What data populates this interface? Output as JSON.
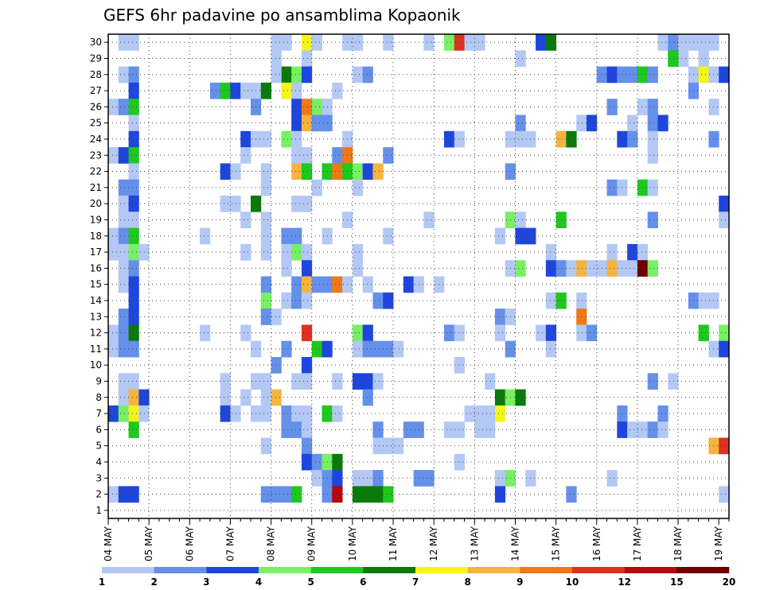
{
  "chart_data": {
    "type": "heatmap",
    "title": "GEFS 6hr padavine po ansamblima Kopaonik",
    "x_tick_labels": [
      "04 MAY",
      "05 MAY",
      "06 MAY",
      "07 MAY",
      "08 MAY",
      "09 MAY",
      "10 MAY",
      "11 MAY",
      "12 MAY",
      "13 MAY",
      "14 MAY",
      "15 MAY",
      "16 MAY",
      "17 MAY",
      "18 MAY",
      "19 MAY"
    ],
    "y_tick_labels": [
      "1",
      "2",
      "3",
      "4",
      "5",
      "6",
      "7",
      "8",
      "9",
      "10",
      "11",
      "12",
      "13",
      "14",
      "15",
      "16",
      "17",
      "18",
      "19",
      "20",
      "21",
      "22",
      "23",
      "24",
      "25",
      "26",
      "27",
      "28",
      "29",
      "30"
    ],
    "y_range": [
      1,
      30
    ],
    "time_steps_6h": 61,
    "grid": true,
    "legend_position": "bottom",
    "legend_levels": [
      "1",
      "2",
      "3",
      "4",
      "5",
      "6",
      "7",
      "8",
      "9",
      "10",
      "12",
      "15",
      "20"
    ],
    "colors": [
      "#b4c8f5",
      "#6490ea",
      "#1e46dc",
      "#78f064",
      "#1ec81e",
      "#0a7a0a",
      "#f5f51e",
      "#f5b440",
      "#f07818",
      "#dc321e",
      "#b40a0a",
      "#6e0000"
    ],
    "cells": [
      [
        1,
        30,
        0
      ],
      [
        2,
        30,
        0
      ],
      [
        16,
        30,
        0
      ],
      [
        17,
        30,
        0
      ],
      [
        17,
        28,
        5
      ],
      [
        19,
        30,
        6
      ],
      [
        20,
        30,
        0
      ],
      [
        23,
        30,
        0
      ],
      [
        24,
        30,
        0
      ],
      [
        27,
        30,
        0
      ],
      [
        31,
        30,
        0
      ],
      [
        31,
        31,
        0
      ],
      [
        33,
        30,
        3
      ],
      [
        34,
        30,
        9
      ],
      [
        35,
        30,
        0
      ],
      [
        36,
        30,
        0
      ],
      [
        42,
        30,
        2
      ],
      [
        43,
        30,
        5
      ],
      [
        54,
        30,
        0
      ],
      [
        55,
        30,
        1
      ],
      [
        55,
        29,
        4
      ],
      [
        56,
        30,
        0
      ],
      [
        56,
        29,
        0
      ],
      [
        57,
        30,
        0
      ],
      [
        58,
        30,
        0
      ],
      [
        59,
        30,
        0
      ],
      [
        16,
        29,
        0
      ],
      [
        19,
        29,
        0
      ],
      [
        40,
        29,
        0
      ],
      [
        55,
        29,
        4
      ],
      [
        58,
        29,
        0
      ],
      [
        58,
        29,
        0
      ],
      [
        1,
        28,
        0
      ],
      [
        2,
        28,
        1
      ],
      [
        16,
        28,
        0
      ],
      [
        18,
        28,
        3
      ],
      [
        19,
        28,
        2
      ],
      [
        24,
        28,
        0
      ],
      [
        25,
        28,
        1
      ],
      [
        48,
        28,
        1
      ],
      [
        49,
        28,
        2
      ],
      [
        50,
        28,
        1
      ],
      [
        51,
        28,
        1
      ],
      [
        52,
        28,
        4
      ],
      [
        53,
        28,
        1
      ],
      [
        57,
        28,
        0
      ],
      [
        58,
        28,
        6
      ],
      [
        59,
        28,
        0
      ],
      [
        60,
        28,
        2
      ],
      [
        2,
        27,
        2
      ],
      [
        10,
        27,
        1
      ],
      [
        11,
        27,
        4
      ],
      [
        12,
        27,
        2
      ],
      [
        13,
        27,
        0
      ],
      [
        14,
        27,
        0
      ],
      [
        15,
        27,
        5
      ],
      [
        17,
        27,
        6
      ],
      [
        18,
        27,
        0
      ],
      [
        22,
        27,
        0
      ],
      [
        57,
        27,
        1
      ],
      [
        0,
        26,
        0
      ],
      [
        1,
        26,
        1
      ],
      [
        2,
        26,
        4
      ],
      [
        14,
        26,
        1
      ],
      [
        18,
        26,
        2
      ],
      [
        19,
        26,
        8
      ],
      [
        20,
        26,
        3
      ],
      [
        21,
        26,
        0
      ],
      [
        49,
        26,
        1
      ],
      [
        52,
        26,
        0
      ],
      [
        53,
        26,
        1
      ],
      [
        59,
        26,
        0
      ],
      [
        2,
        25,
        0
      ],
      [
        18,
        25,
        2
      ],
      [
        19,
        25,
        7
      ],
      [
        20,
        25,
        1
      ],
      [
        21,
        25,
        1
      ],
      [
        40,
        25,
        1
      ],
      [
        46,
        25,
        0
      ],
      [
        47,
        25,
        2
      ],
      [
        51,
        25,
        0
      ],
      [
        53,
        25,
        1
      ],
      [
        54,
        25,
        2
      ],
      [
        2,
        24,
        2
      ],
      [
        13,
        24,
        2
      ],
      [
        14,
        24,
        0
      ],
      [
        15,
        24,
        0
      ],
      [
        17,
        24,
        3
      ],
      [
        18,
        24,
        0
      ],
      [
        23,
        24,
        0
      ],
      [
        33,
        24,
        2
      ],
      [
        34,
        24,
        0
      ],
      [
        39,
        24,
        0
      ],
      [
        40,
        24,
        0
      ],
      [
        41,
        24,
        0
      ],
      [
        44,
        24,
        7
      ],
      [
        45,
        24,
        5
      ],
      [
        50,
        24,
        2
      ],
      [
        51,
        24,
        1
      ],
      [
        53,
        24,
        0
      ],
      [
        59,
        24,
        1
      ],
      [
        0,
        23,
        0
      ],
      [
        1,
        23,
        2
      ],
      [
        2,
        23,
        4
      ],
      [
        13,
        23,
        0
      ],
      [
        18,
        23,
        0
      ],
      [
        19,
        23,
        0
      ],
      [
        22,
        23,
        1
      ],
      [
        23,
        23,
        8
      ],
      [
        27,
        23,
        1
      ],
      [
        53,
        23,
        0
      ],
      [
        2,
        22,
        0
      ],
      [
        11,
        22,
        2
      ],
      [
        12,
        22,
        0
      ],
      [
        15,
        22,
        0
      ],
      [
        18,
        22,
        7
      ],
      [
        19,
        22,
        4
      ],
      [
        21,
        22,
        4
      ],
      [
        22,
        22,
        8
      ],
      [
        23,
        22,
        4
      ],
      [
        24,
        22,
        3
      ],
      [
        25,
        22,
        2
      ],
      [
        26,
        22,
        7
      ],
      [
        39,
        22,
        1
      ],
      [
        1,
        21,
        1
      ],
      [
        2,
        21,
        1
      ],
      [
        15,
        21,
        0
      ],
      [
        20,
        21,
        0
      ],
      [
        24,
        21,
        0
      ],
      [
        49,
        21,
        1
      ],
      [
        50,
        21,
        0
      ],
      [
        52,
        21,
        4
      ],
      [
        53,
        21,
        0
      ],
      [
        1,
        20,
        0
      ],
      [
        2,
        20,
        2
      ],
      [
        11,
        20,
        0
      ],
      [
        12,
        20,
        0
      ],
      [
        14,
        20,
        5
      ],
      [
        18,
        20,
        0
      ],
      [
        19,
        20,
        0
      ],
      [
        60,
        20,
        2
      ],
      [
        1,
        19,
        0
      ],
      [
        2,
        19,
        0
      ],
      [
        13,
        19,
        0
      ],
      [
        15,
        19,
        0
      ],
      [
        23,
        19,
        0
      ],
      [
        31,
        19,
        0
      ],
      [
        39,
        19,
        3
      ],
      [
        40,
        19,
        0
      ],
      [
        44,
        19,
        4
      ],
      [
        53,
        19,
        1
      ],
      [
        60,
        19,
        0
      ],
      [
        0,
        18,
        0
      ],
      [
        1,
        18,
        1
      ],
      [
        2,
        18,
        4
      ],
      [
        9,
        18,
        0
      ],
      [
        15,
        18,
        0
      ],
      [
        17,
        18,
        1
      ],
      [
        18,
        18,
        1
      ],
      [
        21,
        18,
        0
      ],
      [
        27,
        18,
        0
      ],
      [
        38,
        18,
        0
      ],
      [
        40,
        18,
        2
      ],
      [
        41,
        18,
        2
      ],
      [
        0,
        17,
        0
      ],
      [
        1,
        17,
        0
      ],
      [
        2,
        17,
        3
      ],
      [
        3,
        17,
        0
      ],
      [
        13,
        17,
        0
      ],
      [
        15,
        17,
        0
      ],
      [
        17,
        17,
        0
      ],
      [
        18,
        17,
        3
      ],
      [
        19,
        17,
        0
      ],
      [
        24,
        17,
        0
      ],
      [
        43,
        17,
        0
      ],
      [
        49,
        17,
        0
      ],
      [
        51,
        17,
        2
      ],
      [
        52,
        17,
        0
      ],
      [
        1,
        16,
        0
      ],
      [
        2,
        16,
        1
      ],
      [
        17,
        16,
        0
      ],
      [
        19,
        16,
        2
      ],
      [
        24,
        16,
        0
      ],
      [
        39,
        16,
        0
      ],
      [
        40,
        16,
        3
      ],
      [
        43,
        16,
        2
      ],
      [
        44,
        16,
        1
      ],
      [
        45,
        16,
        0
      ],
      [
        46,
        16,
        7
      ],
      [
        47,
        16,
        0
      ],
      [
        48,
        16,
        0
      ],
      [
        49,
        16,
        7
      ],
      [
        50,
        16,
        0
      ],
      [
        51,
        16,
        0
      ],
      [
        52,
        16,
        11
      ],
      [
        53,
        16,
        3
      ],
      [
        1,
        15,
        0
      ],
      [
        2,
        15,
        2
      ],
      [
        15,
        15,
        1
      ],
      [
        18,
        15,
        1
      ],
      [
        19,
        15,
        7
      ],
      [
        20,
        15,
        1
      ],
      [
        21,
        15,
        1
      ],
      [
        22,
        15,
        8
      ],
      [
        23,
        15,
        0
      ],
      [
        25,
        15,
        0
      ],
      [
        29,
        15,
        2
      ],
      [
        30,
        15,
        0
      ],
      [
        32,
        15,
        0
      ],
      [
        2,
        14,
        2
      ],
      [
        15,
        14,
        3
      ],
      [
        17,
        14,
        0
      ],
      [
        18,
        14,
        1
      ],
      [
        19,
        14,
        0
      ],
      [
        26,
        14,
        1
      ],
      [
        27,
        14,
        2
      ],
      [
        43,
        14,
        0
      ],
      [
        44,
        14,
        4
      ],
      [
        46,
        14,
        0
      ],
      [
        57,
        14,
        1
      ],
      [
        58,
        14,
        0
      ],
      [
        59,
        14,
        0
      ],
      [
        1,
        13,
        1
      ],
      [
        2,
        13,
        2
      ],
      [
        15,
        13,
        1
      ],
      [
        16,
        13,
        0
      ],
      [
        38,
        13,
        1
      ],
      [
        39,
        13,
        0
      ],
      [
        46,
        13,
        8
      ],
      [
        0,
        12,
        0
      ],
      [
        1,
        12,
        1
      ],
      [
        2,
        12,
        5
      ],
      [
        9,
        12,
        0
      ],
      [
        13,
        12,
        0
      ],
      [
        19,
        12,
        9
      ],
      [
        24,
        12,
        3
      ],
      [
        25,
        12,
        2
      ],
      [
        33,
        12,
        1
      ],
      [
        34,
        12,
        0
      ],
      [
        38,
        12,
        0
      ],
      [
        42,
        12,
        0
      ],
      [
        43,
        12,
        2
      ],
      [
        46,
        12,
        0
      ],
      [
        47,
        12,
        1
      ],
      [
        58,
        12,
        4
      ],
      [
        60,
        12,
        3
      ],
      [
        0,
        11,
        0
      ],
      [
        1,
        11,
        1
      ],
      [
        2,
        11,
        1
      ],
      [
        14,
        11,
        0
      ],
      [
        17,
        11,
        1
      ],
      [
        20,
        11,
        4
      ],
      [
        21,
        11,
        2
      ],
      [
        24,
        11,
        0
      ],
      [
        25,
        11,
        1
      ],
      [
        26,
        11,
        1
      ],
      [
        27,
        11,
        1
      ],
      [
        28,
        11,
        0
      ],
      [
        39,
        11,
        1
      ],
      [
        43,
        11,
        0
      ],
      [
        59,
        11,
        0
      ],
      [
        60,
        11,
        2
      ],
      [
        16,
        10,
        1
      ],
      [
        19,
        10,
        2
      ],
      [
        34,
        10,
        0
      ],
      [
        1,
        9,
        0
      ],
      [
        2,
        9,
        0
      ],
      [
        11,
        9,
        0
      ],
      [
        14,
        9,
        0
      ],
      [
        15,
        9,
        0
      ],
      [
        18,
        9,
        0
      ],
      [
        19,
        9,
        0
      ],
      [
        22,
        9,
        0
      ],
      [
        24,
        9,
        2
      ],
      [
        25,
        9,
        2
      ],
      [
        26,
        9,
        0
      ],
      [
        37,
        9,
        0
      ],
      [
        53,
        9,
        1
      ],
      [
        55,
        9,
        0
      ],
      [
        1,
        8,
        0
      ],
      [
        2,
        8,
        7
      ],
      [
        3,
        8,
        2
      ],
      [
        11,
        8,
        0
      ],
      [
        13,
        8,
        0
      ],
      [
        15,
        8,
        0
      ],
      [
        16,
        8,
        7
      ],
      [
        25,
        8,
        1
      ],
      [
        38,
        8,
        5
      ],
      [
        39,
        8,
        3
      ],
      [
        40,
        8,
        5
      ],
      [
        0,
        7,
        2
      ],
      [
        1,
        7,
        3
      ],
      [
        2,
        7,
        6
      ],
      [
        3,
        7,
        0
      ],
      [
        11,
        7,
        2
      ],
      [
        12,
        7,
        0
      ],
      [
        14,
        7,
        0
      ],
      [
        15,
        7,
        0
      ],
      [
        17,
        7,
        1
      ],
      [
        18,
        7,
        0
      ],
      [
        19,
        7,
        0
      ],
      [
        21,
        7,
        4
      ],
      [
        22,
        7,
        0
      ],
      [
        35,
        7,
        0
      ],
      [
        36,
        7,
        0
      ],
      [
        37,
        7,
        0
      ],
      [
        38,
        7,
        6
      ],
      [
        50,
        7,
        1
      ],
      [
        54,
        7,
        1
      ],
      [
        2,
        6,
        4
      ],
      [
        17,
        6,
        1
      ],
      [
        18,
        6,
        1
      ],
      [
        19,
        6,
        0
      ],
      [
        26,
        6,
        1
      ],
      [
        29,
        6,
        1
      ],
      [
        30,
        6,
        1
      ],
      [
        33,
        6,
        0
      ],
      [
        34,
        6,
        0
      ],
      [
        36,
        6,
        0
      ],
      [
        37,
        6,
        0
      ],
      [
        50,
        6,
        2
      ],
      [
        51,
        6,
        0
      ],
      [
        52,
        6,
        0
      ],
      [
        53,
        6,
        1
      ],
      [
        54,
        6,
        0
      ],
      [
        15,
        5,
        0
      ],
      [
        19,
        5,
        1
      ],
      [
        26,
        5,
        0
      ],
      [
        27,
        5,
        0
      ],
      [
        28,
        5,
        0
      ],
      [
        59,
        5,
        7
      ],
      [
        60,
        5,
        9
      ],
      [
        19,
        4,
        2
      ],
      [
        20,
        4,
        1
      ],
      [
        21,
        4,
        3
      ],
      [
        22,
        4,
        5
      ],
      [
        34,
        4,
        0
      ],
      [
        20,
        3,
        0
      ],
      [
        21,
        3,
        1
      ],
      [
        22,
        3,
        2
      ],
      [
        24,
        3,
        0
      ],
      [
        25,
        3,
        0
      ],
      [
        26,
        3,
        1
      ],
      [
        30,
        3,
        1
      ],
      [
        31,
        3,
        1
      ],
      [
        38,
        3,
        0
      ],
      [
        39,
        3,
        3
      ],
      [
        41,
        3,
        0
      ],
      [
        49,
        3,
        0
      ],
      [
        0,
        2,
        0
      ],
      [
        1,
        2,
        2
      ],
      [
        2,
        2,
        2
      ],
      [
        15,
        2,
        1
      ],
      [
        16,
        2,
        1
      ],
      [
        17,
        2,
        1
      ],
      [
        18,
        2,
        4
      ],
      [
        21,
        2,
        1
      ],
      [
        22,
        2,
        10
      ],
      [
        24,
        2,
        5
      ],
      [
        25,
        2,
        5
      ],
      [
        26,
        2,
        5
      ],
      [
        27,
        2,
        4
      ],
      [
        38,
        2,
        2
      ],
      [
        45,
        2,
        1
      ],
      [
        60,
        2,
        0
      ]
    ]
  }
}
